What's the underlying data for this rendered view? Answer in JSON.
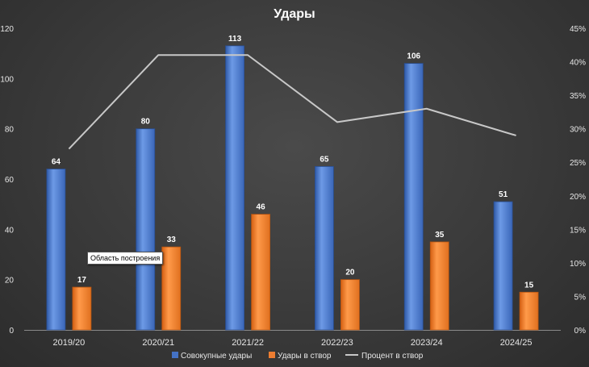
{
  "chart_data": {
    "type": "bar",
    "title": "Удары",
    "categories": [
      "2019/20",
      "2020/21",
      "2021/22",
      "2022/23",
      "2023/24",
      "2024/25"
    ],
    "series": [
      {
        "name": "Совокупные удары",
        "type": "bar",
        "axis": "left",
        "color": "#4472C4",
        "values": [
          64,
          80,
          113,
          65,
          106,
          51
        ]
      },
      {
        "name": "Удары в створ",
        "type": "bar",
        "axis": "left",
        "color": "#ED7D31",
        "values": [
          17,
          33,
          46,
          20,
          35,
          15
        ]
      },
      {
        "name": "Процент в створ",
        "type": "line",
        "axis": "right",
        "color": "#C8C8C8",
        "values": [
          27,
          41,
          41,
          31,
          33,
          29
        ]
      }
    ],
    "y_left": {
      "range": [
        0,
        120
      ],
      "ticks": [
        "0",
        "20",
        "40",
        "60",
        "80",
        "100",
        "120"
      ]
    },
    "y_right": {
      "range": [
        0,
        45
      ],
      "ticks": [
        "0%",
        "5%",
        "10%",
        "15%",
        "20%",
        "25%",
        "30%",
        "35%",
        "40%",
        "45%"
      ]
    },
    "grid": false,
    "legend_position": "bottom",
    "tooltip": "Область построения"
  }
}
